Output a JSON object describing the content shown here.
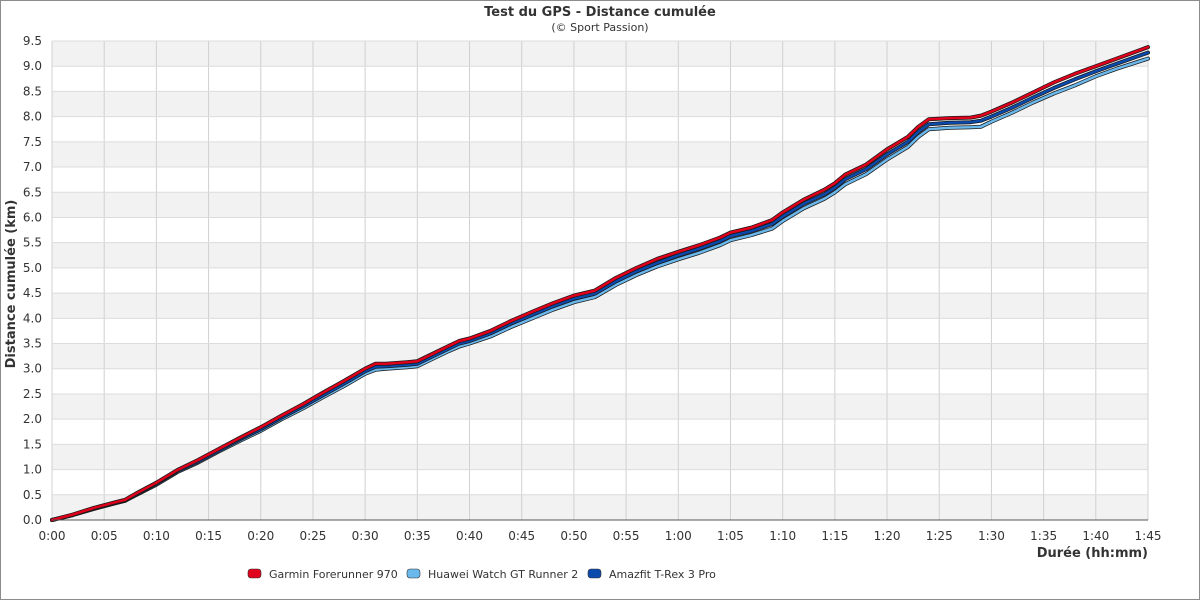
{
  "chart_data": {
    "type": "line",
    "title": "Test du GPS - Distance cumulée",
    "subtitle": "(© Sport Passion)",
    "xlabel": "Durée (hh:mm)",
    "ylabel": "Distance cumulée (km)",
    "x_unit": "minutes",
    "xlim": [
      0,
      105
    ],
    "ylim": [
      0,
      9.5
    ],
    "grid": true,
    "legend_position": "bottom-left",
    "x_ticks": [
      "0:00",
      "0:05",
      "0:10",
      "0:15",
      "0:20",
      "0:25",
      "0:30",
      "0:35",
      "0:40",
      "0:45",
      "0:50",
      "0:55",
      "1:00",
      "1:05",
      "1:10",
      "1:15",
      "1:20",
      "1:25",
      "1:30",
      "1:35",
      "1:40",
      "1:45"
    ],
    "y_ticks": [
      "0.0",
      "0.5",
      "1.0",
      "1.5",
      "2.0",
      "2.5",
      "3.0",
      "3.5",
      "4.0",
      "4.5",
      "5.0",
      "5.5",
      "6.0",
      "6.5",
      "7.0",
      "7.5",
      "8.0",
      "8.5",
      "9.0",
      "9.5"
    ],
    "x": [
      0,
      2,
      4,
      6,
      7,
      8,
      10,
      12,
      14,
      16,
      18,
      20,
      22,
      24,
      26,
      28,
      30,
      31,
      32,
      34,
      35,
      37,
      38,
      39,
      40,
      42,
      44,
      46,
      48,
      50,
      52,
      54,
      56,
      58,
      60,
      62,
      64,
      65,
      67,
      69,
      70,
      72,
      74,
      75,
      76,
      78,
      80,
      82,
      83,
      84,
      86,
      88,
      89,
      90,
      92,
      94,
      96,
      98,
      100,
      102,
      105
    ],
    "series": [
      {
        "name": "Garmin Forerunner 970",
        "color": "#e0001b",
        "values": [
          0,
          0.11,
          0.24,
          0.35,
          0.4,
          0.52,
          0.74,
          0.99,
          1.19,
          1.41,
          1.63,
          1.84,
          2.07,
          2.29,
          2.53,
          2.76,
          3.0,
          3.1,
          3.1,
          3.13,
          3.15,
          3.35,
          3.45,
          3.55,
          3.6,
          3.75,
          3.95,
          4.13,
          4.3,
          4.45,
          4.55,
          4.8,
          5.0,
          5.18,
          5.32,
          5.45,
          5.6,
          5.7,
          5.8,
          5.95,
          6.1,
          6.35,
          6.55,
          6.68,
          6.85,
          7.05,
          7.35,
          7.6,
          7.8,
          7.95,
          7.97,
          7.98,
          8.02,
          8.1,
          8.28,
          8.48,
          8.68,
          8.85,
          9.0,
          9.15,
          9.38
        ]
      },
      {
        "name": "Huawei Watch GT Runner 2",
        "color": "#6ab8ec",
        "values": [
          0,
          0.1,
          0.22,
          0.33,
          0.38,
          0.49,
          0.7,
          0.95,
          1.14,
          1.36,
          1.57,
          1.77,
          2.0,
          2.21,
          2.44,
          2.66,
          2.9,
          2.98,
          3.0,
          3.03,
          3.05,
          3.25,
          3.35,
          3.44,
          3.5,
          3.64,
          3.83,
          4.0,
          4.17,
          4.32,
          4.42,
          4.66,
          4.86,
          5.03,
          5.17,
          5.3,
          5.45,
          5.55,
          5.65,
          5.78,
          5.93,
          6.18,
          6.37,
          6.5,
          6.66,
          6.86,
          7.15,
          7.4,
          7.6,
          7.75,
          7.78,
          7.79,
          7.8,
          7.9,
          8.08,
          8.28,
          8.46,
          8.62,
          8.8,
          8.95,
          9.15
        ]
      },
      {
        "name": "Amazfit T-Rex 3 Pro",
        "color": "#0b4aad",
        "values": [
          0,
          0.1,
          0.23,
          0.34,
          0.39,
          0.5,
          0.72,
          0.97,
          1.16,
          1.38,
          1.6,
          1.8,
          2.03,
          2.25,
          2.48,
          2.71,
          2.95,
          3.04,
          3.05,
          3.08,
          3.1,
          3.3,
          3.4,
          3.5,
          3.55,
          3.7,
          3.9,
          4.07,
          4.24,
          4.39,
          4.49,
          4.73,
          4.93,
          5.1,
          5.25,
          5.38,
          5.53,
          5.63,
          5.73,
          5.87,
          6.02,
          6.27,
          6.46,
          6.59,
          6.76,
          6.96,
          7.25,
          7.5,
          7.7,
          7.85,
          7.88,
          7.89,
          7.92,
          8.0,
          8.18,
          8.38,
          8.57,
          8.74,
          8.9,
          9.05,
          9.27
        ]
      }
    ]
  }
}
